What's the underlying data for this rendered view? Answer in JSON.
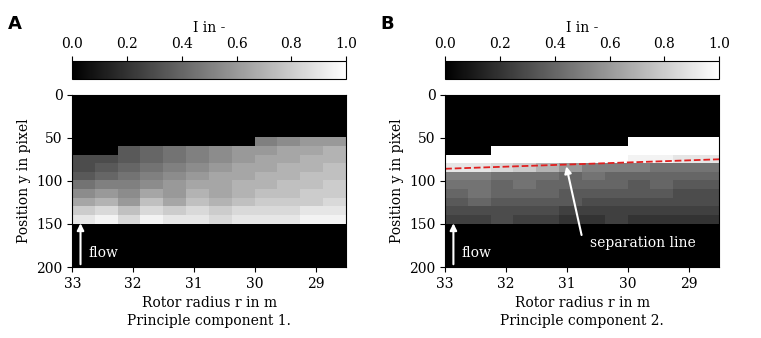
{
  "chart_data": [
    {
      "type": "heatmap",
      "panel_label": "A",
      "caption": "Principle component 1.",
      "xlabel": "Rotor radius r in m",
      "ylabel": "Position y in pixel",
      "xlim": [
        33,
        28.5
      ],
      "ylim": [
        200,
        0
      ],
      "xticks": [
        33,
        32,
        31,
        30,
        29
      ],
      "yticks": [
        0,
        50,
        100,
        150,
        200
      ],
      "colorbar": {
        "label": "I in -",
        "range": [
          0.0,
          1.0
        ],
        "ticks": [
          0.0,
          0.2,
          0.4,
          0.6,
          0.8,
          1.0
        ]
      },
      "annotations": [
        {
          "text": "flow"
        }
      ],
      "cells": [
        [
          0,
          0,
          0,
          0,
          0,
          0,
          0,
          0,
          0,
          0,
          0,
          0
        ],
        [
          0,
          0,
          0,
          0,
          0,
          0,
          0,
          0,
          0,
          0,
          0,
          0
        ],
        [
          0,
          0,
          0,
          0,
          0,
          0,
          0,
          0,
          0,
          0,
          0,
          0
        ],
        [
          0,
          0,
          0,
          0,
          0,
          0,
          0,
          0,
          0,
          0,
          0,
          0
        ],
        [
          0,
          0,
          0,
          0,
          0,
          0,
          0,
          0,
          0,
          0,
          0,
          0
        ],
        [
          0,
          0,
          0,
          0,
          0,
          0,
          0,
          0,
          0.5,
          0.55,
          0.6,
          0.6
        ],
        [
          0,
          0,
          0.35,
          0.4,
          0.45,
          0.5,
          0.55,
          0.6,
          0.6,
          0.65,
          0.65,
          0.7
        ],
        [
          0.3,
          0.3,
          0.35,
          0.4,
          0.45,
          0.5,
          0.55,
          0.6,
          0.65,
          0.65,
          0.7,
          0.7
        ],
        [
          0.3,
          0.35,
          0.4,
          0.45,
          0.5,
          0.55,
          0.6,
          0.65,
          0.65,
          0.7,
          0.7,
          0.75
        ],
        [
          0.35,
          0.4,
          0.45,
          0.5,
          0.55,
          0.6,
          0.65,
          0.65,
          0.7,
          0.7,
          0.75,
          0.75
        ],
        [
          0.45,
          0.5,
          0.5,
          0.55,
          0.6,
          0.65,
          0.65,
          0.7,
          0.7,
          0.75,
          0.75,
          0.8
        ],
        [
          0.55,
          0.6,
          0.55,
          0.65,
          0.6,
          0.7,
          0.65,
          0.7,
          0.75,
          0.75,
          0.8,
          0.8
        ],
        [
          0.65,
          0.7,
          0.6,
          0.75,
          0.65,
          0.75,
          0.7,
          0.75,
          0.8,
          0.8,
          0.8,
          0.85
        ],
        [
          0.8,
          0.85,
          0.75,
          0.85,
          0.8,
          0.85,
          0.8,
          0.85,
          0.85,
          0.85,
          0.9,
          0.9
        ],
        [
          0.9,
          0.95,
          0.85,
          0.95,
          0.9,
          0.9,
          0.85,
          0.9,
          0.9,
          0.9,
          0.95,
          0.95
        ],
        [
          0,
          0,
          0,
          0,
          0,
          0,
          0,
          0,
          0,
          0,
          0,
          0
        ],
        [
          0,
          0,
          0,
          0,
          0,
          0,
          0,
          0,
          0,
          0,
          0,
          0
        ],
        [
          0,
          0,
          0,
          0,
          0,
          0,
          0,
          0,
          0,
          0,
          0,
          0
        ],
        [
          0,
          0,
          0,
          0,
          0,
          0,
          0,
          0,
          0,
          0,
          0,
          0
        ],
        [
          0,
          0,
          0,
          0,
          0,
          0,
          0,
          0,
          0,
          0,
          0,
          0
        ]
      ]
    },
    {
      "type": "heatmap",
      "panel_label": "B",
      "caption": "Principle component 2.",
      "xlabel": "Rotor radius r in m",
      "ylabel": "Position y in pixel",
      "xlim": [
        33,
        28.5
      ],
      "ylim": [
        200,
        0
      ],
      "xticks": [
        33,
        32,
        31,
        30,
        29
      ],
      "yticks": [
        0,
        50,
        100,
        150,
        200
      ],
      "colorbar": {
        "label": "I in -",
        "range": [
          0.0,
          1.0
        ],
        "ticks": [
          0.0,
          0.2,
          0.4,
          0.6,
          0.8,
          1.0
        ]
      },
      "annotations": [
        {
          "text": "flow"
        },
        {
          "text": "separation line"
        }
      ],
      "separation_line": {
        "x": [
          33,
          28.5
        ],
        "y": [
          86,
          75
        ],
        "color": "#e02020",
        "line_style": "dashed"
      },
      "cells": [
        [
          0,
          0,
          0,
          0,
          0,
          0,
          0,
          0,
          0,
          0,
          0,
          0
        ],
        [
          0,
          0,
          0,
          0,
          0,
          0,
          0,
          0,
          0,
          0,
          0,
          0
        ],
        [
          0,
          0,
          0,
          0,
          0,
          0,
          0,
          0,
          0,
          0,
          0,
          0
        ],
        [
          0,
          0,
          0,
          0,
          0,
          0,
          0,
          0,
          0,
          0,
          0,
          0
        ],
        [
          0,
          0,
          0,
          0,
          0,
          0,
          0,
          0,
          0,
          0,
          0,
          0
        ],
        [
          0,
          0,
          0,
          0,
          0,
          0,
          0,
          0,
          1.0,
          1.0,
          1.0,
          1.0
        ],
        [
          0,
          0,
          1.0,
          1.0,
          1.0,
          1.0,
          1.0,
          1.0,
          1.0,
          1.0,
          1.0,
          1.0
        ],
        [
          1.0,
          1.0,
          1.0,
          1.0,
          1.0,
          1.0,
          1.0,
          1.0,
          0.95,
          0.95,
          0.9,
          0.9
        ],
        [
          0.9,
          0.9,
          0.85,
          0.8,
          0.7,
          0.6,
          0.5,
          0.5,
          0.5,
          0.45,
          0.45,
          0.45
        ],
        [
          0.5,
          0.5,
          0.45,
          0.45,
          0.45,
          0.4,
          0.45,
          0.4,
          0.4,
          0.4,
          0.4,
          0.4
        ],
        [
          0.45,
          0.45,
          0.4,
          0.45,
          0.4,
          0.4,
          0.4,
          0.4,
          0.35,
          0.4,
          0.35,
          0.35
        ],
        [
          0.4,
          0.45,
          0.4,
          0.4,
          0.4,
          0.35,
          0.35,
          0.35,
          0.35,
          0.35,
          0.3,
          0.3
        ],
        [
          0.35,
          0.4,
          0.35,
          0.35,
          0.35,
          0.35,
          0.3,
          0.3,
          0.3,
          0.3,
          0.3,
          0.3
        ],
        [
          0.3,
          0.3,
          0.3,
          0.3,
          0.3,
          0.25,
          0.25,
          0.25,
          0.25,
          0.25,
          0.25,
          0.25
        ],
        [
          0.25,
          0.25,
          0.3,
          0.25,
          0.25,
          0.2,
          0.2,
          0.25,
          0.2,
          0.2,
          0.2,
          0.2
        ],
        [
          0,
          0,
          0,
          0,
          0,
          0,
          0,
          0,
          0,
          0,
          0,
          0
        ],
        [
          0,
          0,
          0,
          0,
          0,
          0,
          0,
          0,
          0,
          0,
          0,
          0
        ],
        [
          0,
          0,
          0,
          0,
          0,
          0,
          0,
          0,
          0,
          0,
          0,
          0
        ],
        [
          0,
          0,
          0,
          0,
          0,
          0,
          0,
          0,
          0,
          0,
          0,
          0
        ],
        [
          0,
          0,
          0,
          0,
          0,
          0,
          0,
          0,
          0,
          0,
          0,
          0
        ]
      ]
    }
  ]
}
